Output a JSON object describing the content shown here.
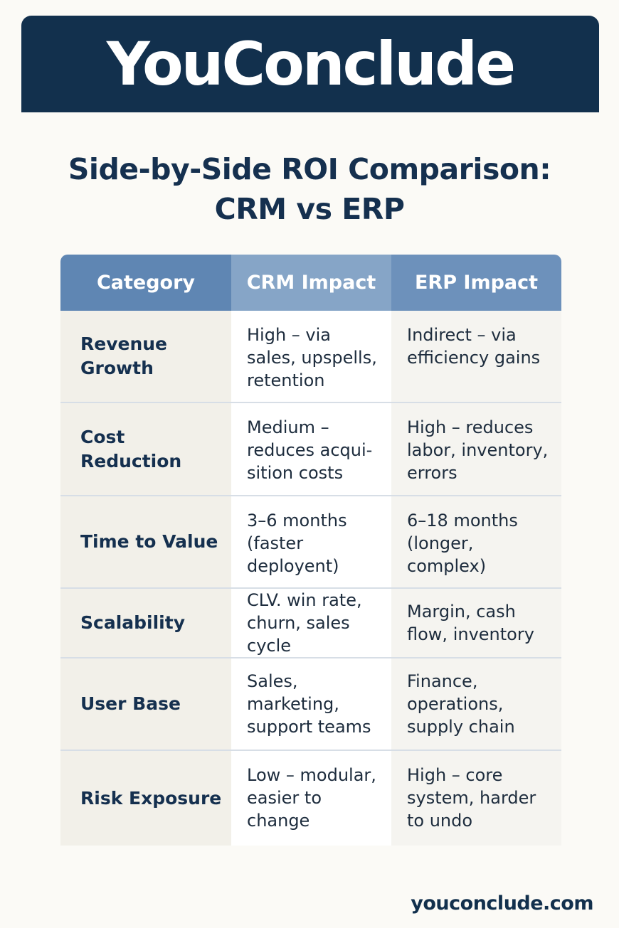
{
  "brand": {
    "name": "YouConclude"
  },
  "title": {
    "line1": "Side-by-Side ROI Comparison:",
    "line2": "CRM vs ERP"
  },
  "table": {
    "headers": [
      "Category",
      "CRM Impact",
      "ERP Impact"
    ],
    "rows": [
      {
        "category": "Revenue Growth",
        "crm": "High – via sales, upspells, retention",
        "erp": "Indirect – via efficiency gains"
      },
      {
        "category": "Cost Reduction",
        "crm": "Medium – reduces acqui-sition costs",
        "erp": "High – reduces labor, inventory, errors"
      },
      {
        "category": "Time to Value",
        "crm": "3–6 months (faster deployent)",
        "erp": "6–18 months (longer, complex)"
      },
      {
        "category": "Scalability",
        "crm": "CLV. win rate, churn, sales cycle",
        "erp": "Margin, cash flow, inventory"
      },
      {
        "category": "User Base",
        "crm": "Sales, marketing, support teams",
        "erp": "Finance, operations, supply chain"
      },
      {
        "category": "Risk Exposure",
        "crm": "Low – modular, easier to change",
        "erp": "High – core system, harder to undo"
      }
    ]
  },
  "footer": {
    "url": "youconclude.com"
  }
}
